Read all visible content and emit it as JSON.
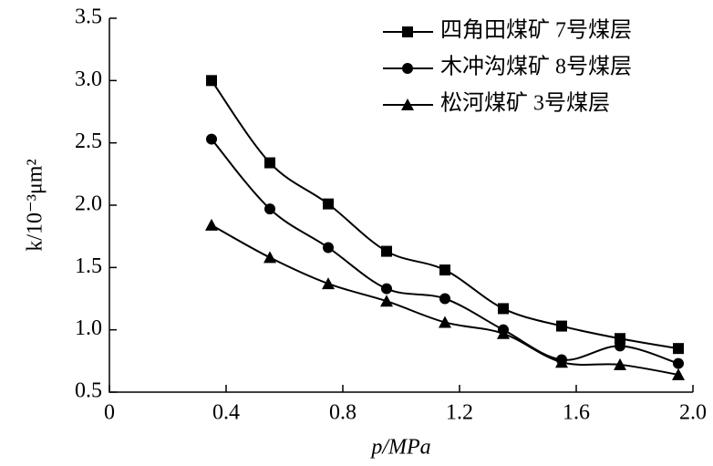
{
  "chart_data": {
    "type": "line",
    "xlabel": "p/MPa",
    "ylabel": "k/10⁻³μm²",
    "x": [
      0.35,
      0.55,
      0.75,
      0.95,
      1.15,
      1.35,
      1.55,
      1.75,
      1.95
    ],
    "series": [
      {
        "name": "四角田煤矿 7号煤层",
        "color": "#000000",
        "marker": "square",
        "values": [
          3.0,
          2.34,
          2.01,
          1.63,
          1.48,
          1.17,
          1.03,
          0.93,
          0.85
        ]
      },
      {
        "name": "木冲沟煤矿 8号煤层",
        "color": "#000000",
        "marker": "circle",
        "values": [
          2.53,
          1.97,
          1.66,
          1.33,
          1.25,
          1.0,
          0.76,
          0.87,
          0.73
        ]
      },
      {
        "name": "松河煤矿 3号煤层",
        "color": "#000000",
        "marker": "triangle",
        "values": [
          1.84,
          1.58,
          1.37,
          1.23,
          1.06,
          0.97,
          0.74,
          0.72,
          0.64
        ]
      }
    ],
    "xlim": [
      0,
      2
    ],
    "xticks": [
      0,
      0.4,
      0.8,
      1.2,
      1.6,
      {
        "value": 2,
        "label": "2.0"
      }
    ],
    "ylim": [
      0.5,
      3.5
    ],
    "yticks": [
      0.5,
      {
        "value": 1,
        "label": "1.0"
      },
      1.5,
      {
        "value": 2,
        "label": "2.0"
      },
      2.5,
      {
        "value": 3,
        "label": "3.0"
      },
      3.5
    ],
    "grid": false,
    "legend": "top-right"
  }
}
